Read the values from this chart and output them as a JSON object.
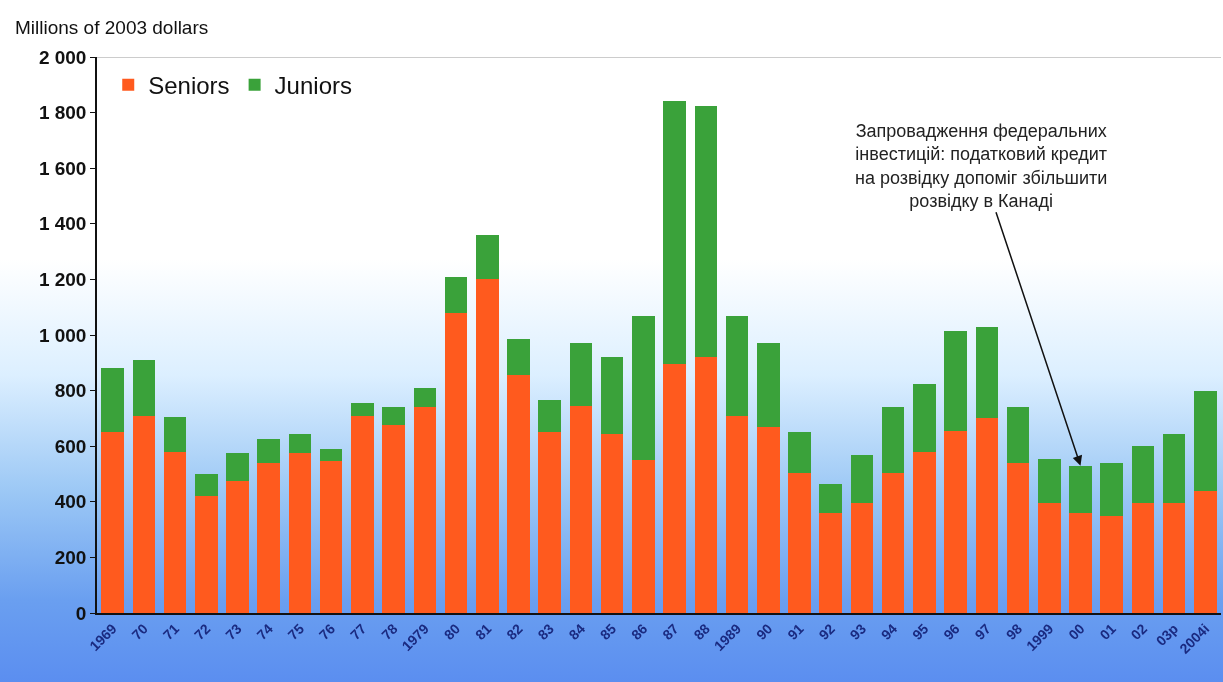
{
  "chart_data": {
    "type": "bar",
    "stacked": true,
    "ylabel": "Millions of 2003 dollars",
    "categories": [
      "1969",
      "70",
      "71",
      "72",
      "73",
      "74",
      "75",
      "76",
      "77",
      "78",
      "1979",
      "80",
      "81",
      "82",
      "83",
      "84",
      "85",
      "86",
      "87",
      "88",
      "1989",
      "90",
      "91",
      "92",
      "93",
      "94",
      "95",
      "96",
      "97",
      "98",
      "1999",
      "00",
      "01",
      "02",
      "03p",
      "2004i"
    ],
    "series": [
      {
        "name": "Seniors",
        "color": "#ff5a1e",
        "values": [
          650,
          710,
          580,
          420,
          475,
          540,
          575,
          545,
          710,
          675,
          740,
          1080,
          1200,
          855,
          650,
          745,
          645,
          550,
          895,
          920,
          710,
          670,
          505,
          360,
          395,
          505,
          580,
          655,
          700,
          540,
          395,
          360,
          350,
          395,
          395,
          440
        ]
      },
      {
        "name": "Juniors",
        "color": "#3aa23a",
        "values": [
          230,
          200,
          125,
          80,
          100,
          85,
          70,
          45,
          45,
          65,
          70,
          130,
          160,
          130,
          115,
          225,
          275,
          520,
          945,
          905,
          360,
          300,
          145,
          105,
          175,
          235,
          245,
          360,
          330,
          200,
          160,
          170,
          190,
          205,
          250,
          360
        ]
      }
    ],
    "ylim": [
      0,
      2000
    ],
    "yticks": [
      0,
      200,
      400,
      600,
      800,
      {
        "value": 1000,
        "label": "1 000"
      },
      {
        "value": 1200,
        "label": "1 200"
      },
      {
        "value": 1400,
        "label": "1 400"
      },
      {
        "value": 1600,
        "label": "1 600"
      },
      {
        "value": 1800,
        "label": "1 800"
      },
      {
        "value": 2000,
        "label": "2 000"
      }
    ],
    "grid": false,
    "legend": "top left",
    "annotations": [
      {
        "text": "Запровадження федеральних\nінвестицій: податковий кредит\nна розвідку допоміг збільшити\nрозвідку в Канаді",
        "x": "00",
        "y": 530
      }
    ]
  }
}
